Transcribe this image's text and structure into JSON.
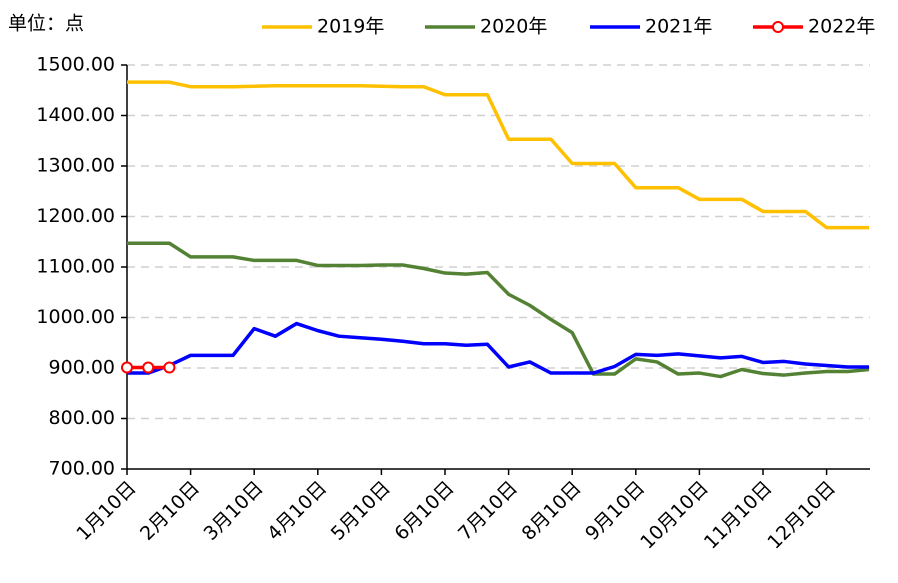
{
  "chart_data": {
    "type": "line",
    "annotation": "单位：点",
    "categories": [
      "1月10日",
      null,
      null,
      "2月10日",
      null,
      null,
      "3月10日",
      null,
      null,
      "4月10日",
      null,
      null,
      "5月10日",
      null,
      null,
      "6月10日",
      null,
      null,
      "7月10日",
      null,
      null,
      "8月10日",
      null,
      null,
      "9月10日",
      null,
      null,
      "10月10日",
      null,
      null,
      "11月10日",
      null,
      null,
      "12月10日",
      null,
      null
    ],
    "series": [
      {
        "name": "2019年",
        "color": "#FFC000",
        "marker": false,
        "values": [
          1466,
          1466,
          1466,
          1457,
          1457,
          1457,
          1458,
          1459,
          1459,
          1459,
          1459,
          1459,
          1458,
          1457,
          1457,
          1441,
          1441,
          1441,
          1353,
          1353,
          1353,
          1305,
          1305,
          1305,
          1257,
          1257,
          1257,
          1234,
          1234,
          1234,
          1210,
          1210,
          1210,
          1178,
          1178,
          1178
        ]
      },
      {
        "name": "2020年",
        "color": "#548235",
        "marker": false,
        "values": [
          1147,
          1147,
          1147,
          1120,
          1120,
          1120,
          1113,
          1113,
          1113,
          1103,
          1103,
          1103,
          1104,
          1104,
          1097,
          1088,
          1086,
          1089,
          1046,
          1024,
          996,
          970,
          888,
          888,
          918,
          912,
          888,
          890,
          883,
          897,
          889,
          886,
          890,
          893,
          893,
          897
        ]
      },
      {
        "name": "2021年",
        "color": "#0000FF",
        "marker": false,
        "values": [
          890,
          890,
          905,
          925,
          925,
          925,
          978,
          963,
          988,
          974,
          963,
          960,
          957,
          953,
          948,
          948,
          945,
          947,
          902,
          912,
          890,
          890,
          890,
          903,
          927,
          925,
          928,
          924,
          920,
          923,
          911,
          913,
          908,
          905,
          902,
          902
        ]
      },
      {
        "name": "2022年",
        "color": "#FF0000",
        "marker": true,
        "values": [
          901,
          901,
          901,
          null,
          null,
          null,
          null,
          null,
          null,
          null,
          null,
          null,
          null,
          null,
          null,
          null,
          null,
          null,
          null,
          null,
          null,
          null,
          null,
          null,
          null,
          null,
          null,
          null,
          null,
          null,
          null,
          null,
          null,
          null,
          null,
          null
        ]
      }
    ],
    "ylim": [
      700,
      1500
    ],
    "yticks": [
      {
        "value": 700,
        "label": "700.00"
      },
      {
        "value": 800,
        "label": "800.00"
      },
      {
        "value": 900,
        "label": "900.00"
      },
      {
        "value": 1000,
        "label": "1000.00"
      },
      {
        "value": 1100,
        "label": "1100.00"
      },
      {
        "value": 1200,
        "label": "1200.00"
      },
      {
        "value": 1300,
        "label": "1300.00"
      },
      {
        "value": 1400,
        "label": "1400.00"
      },
      {
        "value": 1500,
        "label": "1500.00"
      }
    ],
    "grid": true
  }
}
